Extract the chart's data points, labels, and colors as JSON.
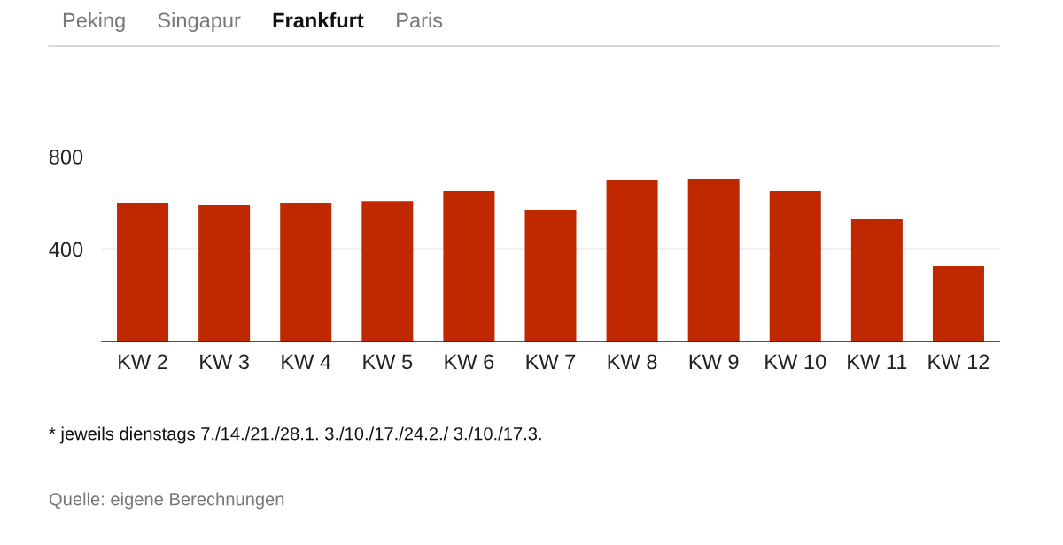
{
  "chart_data": {
    "type": "bar",
    "title": "Frankfurt",
    "categories": [
      "KW 2",
      "KW 3",
      "KW 4",
      "KW 5",
      "KW 6",
      "KW 7",
      "KW 8",
      "KW 9",
      "KW 10",
      "KW 11",
      "KW 12"
    ],
    "values": [
      601,
      589,
      601,
      608,
      651,
      570,
      697,
      704,
      651,
      532,
      325
    ],
    "color": "#c02800",
    "ylim": [
      0,
      800
    ],
    "yticks": [
      {
        "value": 0,
        "label": null
      },
      400,
      800
    ],
    "grid": "y",
    "legend": false,
    "annotations": [
      "Peking",
      "Singapur",
      "Paris",
      "* jeweils dienstags 7./14./21./28.1. 3./10./17./24.2./ 3./10./17.3.",
      "Quelle: eigene Berechnungen"
    ]
  }
}
